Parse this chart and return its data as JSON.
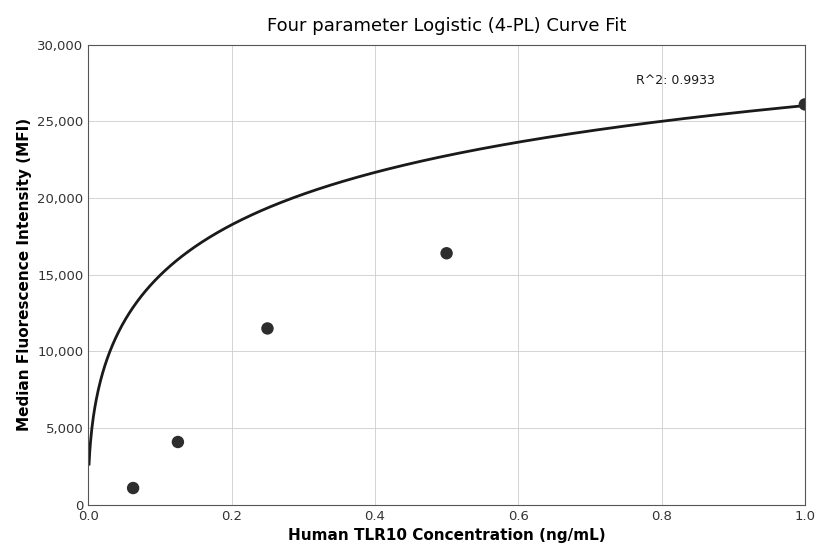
{
  "title": "Four parameter Logistic (4-PL) Curve Fit",
  "xlabel": "Human TLR10 Concentration (ng/mL)",
  "ylabel": "Median Fluorescence Intensity (MFI)",
  "data_points_x": [
    0.0625,
    0.125,
    0.25,
    0.5,
    1.0
  ],
  "data_points_y": [
    1100,
    4100,
    11500,
    16400,
    26100
  ],
  "r_squared": "R^2: 0.9933",
  "r_squared_x": 0.765,
  "r_squared_y": 27400,
  "xlim": [
    0.0,
    1.0
  ],
  "ylim": [
    0,
    30000
  ],
  "xticks": [
    0.0,
    0.2,
    0.4,
    0.6,
    0.8,
    1.0
  ],
  "yticks": [
    0,
    5000,
    10000,
    15000,
    20000,
    25000,
    30000
  ],
  "curve_color": "#1a1a1a",
  "point_color": "#2d2d2d",
  "point_size": 80,
  "background_color": "#ffffff",
  "grid_color": "#cccccc",
  "title_fontsize": 13,
  "label_fontsize": 11,
  "annotation_fontsize": 9
}
